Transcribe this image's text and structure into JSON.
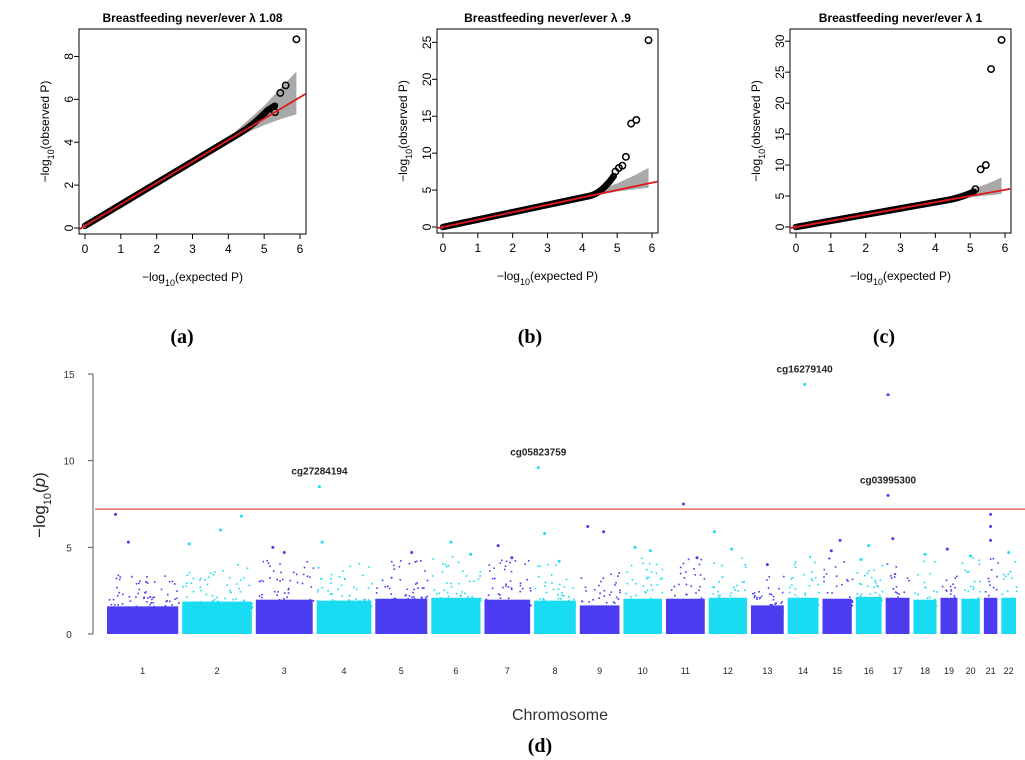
{
  "colors": {
    "qq_points": "#000000",
    "qq_fit_line": "#e0191c",
    "qq_ci_band": "#9a9a9a",
    "manhattan_odd": "#4b3cf0",
    "manhattan_even": "#19dcf2",
    "threshold_line": "#f07a6a"
  },
  "panel_letters": [
    "(a)",
    "(b)",
    "(c)",
    "(d)"
  ],
  "chart_data": [
    {
      "type": "scatter",
      "subtype": "qq",
      "panel": "(a)",
      "title": "Breastfeeding never/ever  λ 1.08",
      "xlabel": "−log10(expected P)",
      "ylabel": "−log10(observed P)",
      "xlim": [
        0,
        6
      ],
      "ylim": [
        0,
        9
      ],
      "xticks": [
        0,
        1,
        2,
        3,
        4,
        5,
        6
      ],
      "yticks": [
        0,
        2,
        4,
        6,
        8
      ],
      "fit_line": {
        "slope": 1.0,
        "intercept": 0.1
      },
      "ci_band": [
        [
          4.2,
          4.2,
          4.5
        ],
        [
          5.0,
          4.8,
          5.7
        ],
        [
          5.5,
          5.1,
          6.6
        ],
        [
          5.9,
          5.3,
          7.3
        ]
      ],
      "trend": {
        "x_end": 5.3,
        "y_end": 5.4,
        "bulge_start": 4.3,
        "bulge_peak": 5.1,
        "bulge_height": 0.3
      },
      "outliers": [
        [
          5.3,
          5.4
        ],
        [
          5.45,
          6.3
        ],
        [
          5.6,
          6.65
        ],
        [
          5.9,
          8.8
        ]
      ]
    },
    {
      "type": "scatter",
      "subtype": "qq",
      "panel": "(b)",
      "title": "Breastfeeding never/ever  λ .9",
      "xlabel": "−log10(expected P)",
      "ylabel": "−log10(observed P)",
      "xlim": [
        0,
        6
      ],
      "ylim": [
        0,
        26
      ],
      "xticks": [
        0,
        1,
        2,
        3,
        4,
        5,
        6
      ],
      "yticks": [
        0,
        5,
        10,
        15,
        20,
        25
      ],
      "fit_line": {
        "slope": 1.0,
        "intercept": 0.0
      },
      "ci_band": [
        [
          4.2,
          4.1,
          4.6
        ],
        [
          5.0,
          4.8,
          5.9
        ],
        [
          5.5,
          5.1,
          7.0
        ],
        [
          5.9,
          5.3,
          8.0
        ]
      ],
      "trend": {
        "x_end": 4.9,
        "y_end": 7.0,
        "bulge_start": 4.2,
        "bulge_peak": 4.9,
        "bulge_height": 2.0
      },
      "outliers": [
        [
          4.95,
          7.5
        ],
        [
          5.05,
          8.0
        ],
        [
          5.15,
          8.3
        ],
        [
          5.25,
          9.5
        ],
        [
          5.4,
          14.0
        ],
        [
          5.55,
          14.5
        ],
        [
          5.9,
          25.3
        ]
      ]
    },
    {
      "type": "scatter",
      "subtype": "qq",
      "panel": "(c)",
      "title": "Breastfeeding never/ever  λ 1",
      "xlabel": "−log10(expected P)",
      "ylabel": "−log10(observed P)",
      "xlim": [
        0,
        6
      ],
      "ylim": [
        0,
        31
      ],
      "xticks": [
        0,
        1,
        2,
        3,
        4,
        5,
        6
      ],
      "yticks": [
        0,
        5,
        10,
        15,
        20,
        25,
        30
      ],
      "fit_line": {
        "slope": 1.0,
        "intercept": 0.0
      },
      "ci_band": [
        [
          4.2,
          4.1,
          4.6
        ],
        [
          5.0,
          4.8,
          6.0
        ],
        [
          5.5,
          5.1,
          7.0
        ],
        [
          5.9,
          5.3,
          8.0
        ]
      ],
      "trend": {
        "x_end": 5.1,
        "y_end": 5.8,
        "bulge_start": 4.4,
        "bulge_peak": 5.1,
        "bulge_height": 0.6
      },
      "outliers": [
        [
          5.15,
          6.1
        ],
        [
          5.3,
          9.3
        ],
        [
          5.45,
          10.0
        ],
        [
          5.6,
          25.5
        ],
        [
          5.9,
          30.2
        ]
      ]
    },
    {
      "type": "scatter",
      "subtype": "manhattan",
      "panel": "(d)",
      "xlabel": "Chromosome",
      "ylabel": "−log10(p)",
      "ylim": [
        0,
        15.5
      ],
      "yticks": [
        0,
        5,
        10,
        15
      ],
      "threshold": 7.2,
      "chromosomes": [
        {
          "label": "1",
          "length": 248,
          "color": "odd",
          "base_max": 2.9,
          "tips": [
            [
              0.12,
              6.9
            ],
            [
              0.3,
              5.3
            ]
          ]
        },
        {
          "label": "2",
          "length": 242,
          "color": "even",
          "base_max": 3.4,
          "tips": [
            [
              0.1,
              5.2
            ],
            [
              0.55,
              6.0
            ],
            [
              0.85,
              6.8
            ]
          ]
        },
        {
          "label": "3",
          "length": 198,
          "color": "odd",
          "base_max": 3.6,
          "tips": [
            [
              0.3,
              5.0
            ],
            [
              0.5,
              4.7
            ]
          ]
        },
        {
          "label": "4",
          "length": 190,
          "color": "even",
          "base_max": 3.5,
          "tips": [
            [
              0.1,
              5.3
            ],
            [
              0.05,
              8.5
            ]
          ],
          "annot": {
            "label": "cg27284194",
            "pos": 0.05,
            "value": 8.5
          }
        },
        {
          "label": "5",
          "length": 181,
          "color": "odd",
          "base_max": 3.7,
          "tips": [
            [
              0.7,
              4.7
            ]
          ]
        },
        {
          "label": "6",
          "length": 171,
          "color": "even",
          "base_max": 3.8,
          "tips": [
            [
              0.4,
              5.3
            ],
            [
              0.8,
              4.6
            ]
          ]
        },
        {
          "label": "7",
          "length": 159,
          "color": "odd",
          "base_max": 3.6,
          "tips": [
            [
              0.3,
              5.1
            ],
            [
              0.6,
              4.4
            ]
          ]
        },
        {
          "label": "8",
          "length": 145,
          "color": "even",
          "base_max": 3.5,
          "tips": [
            [
              0.1,
              9.6
            ],
            [
              0.25,
              5.8
            ],
            [
              0.6,
              4.2
            ]
          ],
          "annot": {
            "label": "cg05823759",
            "pos": 0.1,
            "value": 9.6
          }
        },
        {
          "label": "9",
          "length": 138,
          "color": "odd",
          "base_max": 3.0,
          "tips": [
            [
              0.2,
              6.2
            ],
            [
              0.6,
              5.9
            ]
          ]
        },
        {
          "label": "10",
          "length": 134,
          "color": "even",
          "base_max": 3.7,
          "tips": [
            [
              0.3,
              5.0
            ],
            [
              0.7,
              4.8
            ]
          ]
        },
        {
          "label": "11",
          "length": 135,
          "color": "odd",
          "base_max": 3.7,
          "tips": [
            [
              0.45,
              7.5
            ],
            [
              0.8,
              4.4
            ]
          ]
        },
        {
          "label": "12",
          "length": 133,
          "color": "even",
          "base_max": 3.8,
          "tips": [
            [
              0.15,
              5.9
            ],
            [
              0.6,
              4.9
            ]
          ]
        },
        {
          "label": "13",
          "length": 114,
          "color": "odd",
          "base_max": 3.0,
          "tips": [
            [
              0.5,
              4.0
            ]
          ]
        },
        {
          "label": "14",
          "length": 107,
          "color": "even",
          "base_max": 3.8,
          "tips": [
            [
              0.55,
              14.4
            ]
          ],
          "annot": {
            "label": "cg16279140",
            "pos": 0.55,
            "value": 14.4
          }
        },
        {
          "label": "15",
          "length": 102,
          "color": "odd",
          "base_max": 3.7,
          "tips": [
            [
              0.6,
              5.4
            ],
            [
              0.3,
              4.8
            ]
          ]
        },
        {
          "label": "16",
          "length": 90,
          "color": "even",
          "base_max": 3.9,
          "tips": [
            [
              0.5,
              5.1
            ],
            [
              0.2,
              4.3
            ]
          ]
        },
        {
          "label": "17",
          "length": 83,
          "color": "odd",
          "base_max": 3.8,
          "tips": [
            [
              0.1,
              13.8
            ],
            [
              0.1,
              8.0
            ],
            [
              0.3,
              5.5
            ]
          ],
          "annot": {
            "label": "cg03995300",
            "pos": 0.1,
            "value": 8.0
          }
        },
        {
          "label": "18",
          "length": 80,
          "color": "even",
          "base_max": 3.6,
          "tips": [
            [
              0.5,
              4.6
            ]
          ]
        },
        {
          "label": "19",
          "length": 59,
          "color": "odd",
          "base_max": 3.8,
          "tips": [
            [
              0.4,
              4.9
            ]
          ]
        },
        {
          "label": "20",
          "length": 64,
          "color": "even",
          "base_max": 3.7,
          "tips": [
            [
              0.5,
              4.5
            ]
          ]
        },
        {
          "label": "21",
          "length": 47,
          "color": "odd",
          "base_max": 3.8,
          "tips": [
            [
              0.5,
              6.9
            ],
            [
              0.5,
              6.2
            ],
            [
              0.5,
              5.4
            ]
          ]
        },
        {
          "label": "22",
          "length": 51,
          "color": "even",
          "base_max": 3.8,
          "tips": [
            [
              0.5,
              4.7
            ]
          ]
        }
      ]
    }
  ]
}
